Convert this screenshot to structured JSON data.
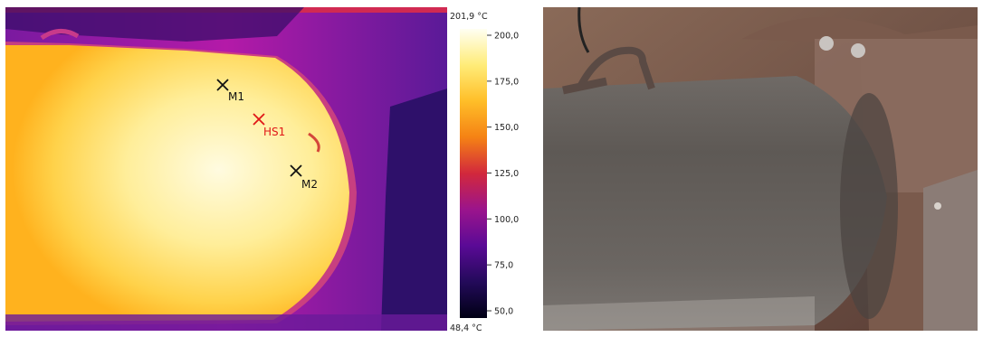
{
  "thermal_image": {
    "markers": [
      {
        "label": "M1",
        "color": "#111111"
      },
      {
        "label": "HS1",
        "color": "#e01818"
      },
      {
        "label": "M2",
        "color": "#111111"
      }
    ]
  },
  "color_scale": {
    "max_label": "201,9 °C",
    "min_label": "48,4 °C",
    "ticks": [
      "200,0",
      "175,0",
      "150,0",
      "125,0",
      "100,0",
      "75,0",
      "50,0"
    ],
    "gradient": [
      "#fffff2",
      "#ffec78",
      "#ffbe28",
      "#f58214",
      "#d2283c",
      "#9b148c",
      "#5a0a96",
      "#230a5a",
      "#000014"
    ]
  },
  "photo": {}
}
